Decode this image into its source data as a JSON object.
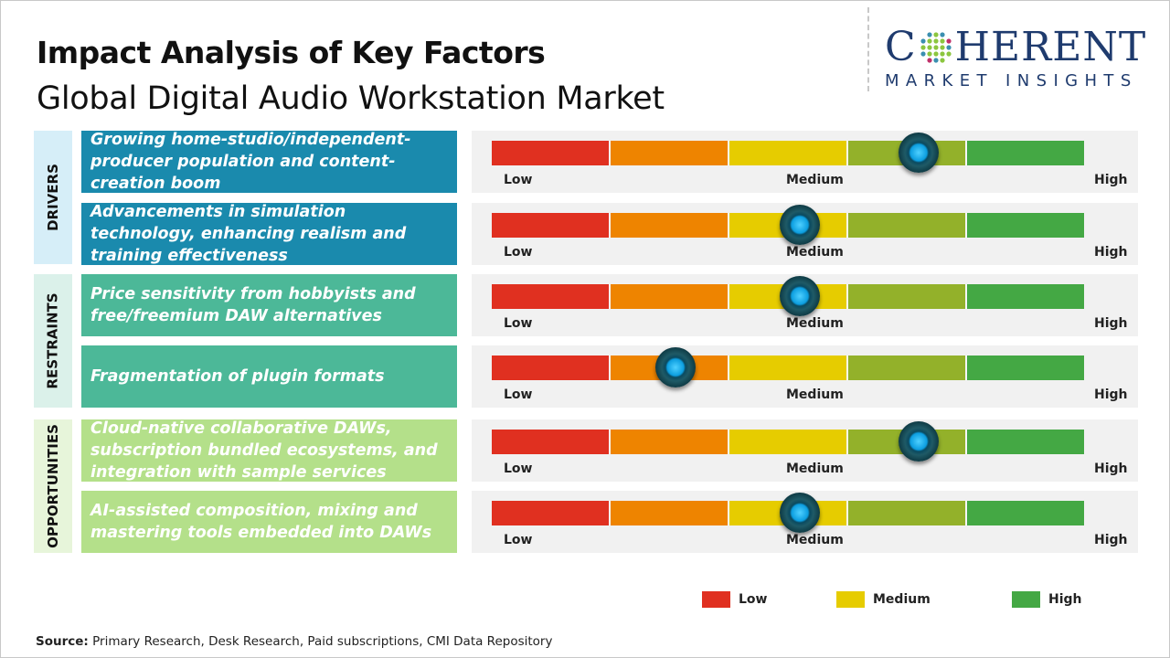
{
  "title": "Impact Analysis of Key Factors",
  "subtitle": "Global Digital Audio Workstation Market",
  "logo": {
    "main_left": "C",
    "main_right": "HERENT",
    "sub": "MARKET INSIGHTS"
  },
  "scale_labels": {
    "low": "Low",
    "medium": "Medium",
    "high": "High"
  },
  "segment_colors": [
    "#e03020",
    "#ee8400",
    "#e6cc00",
    "#93b12a",
    "#44a844"
  ],
  "groups": [
    {
      "label": "DRIVERS",
      "color": "#1a8aad",
      "side_color": "#d6eef8",
      "factors": [
        {
          "text": "Growing home-studio/independent-producer population and content-creation boom",
          "impact_percent": 72
        },
        {
          "text": "Advancements in simulation technology, enhancing realism and training effectiveness",
          "impact_percent": 52
        }
      ]
    },
    {
      "label": "RESTRAINTS",
      "color": "#4cb898",
      "side_color": "#dbf1ea",
      "factors": [
        {
          "text": "Price sensitivity from hobbyists and free/freemium DAW alternatives",
          "impact_percent": 52
        },
        {
          "text": "Fragmentation of plugin formats",
          "impact_percent": 31
        }
      ]
    },
    {
      "label": "OPPORTUNITIES",
      "color": "#b4e08a",
      "side_color": "#e7f5da",
      "factors": [
        {
          "text": "Cloud-native collaborative DAWs, subscription bundled ecosystems, and integration with sample services",
          "impact_percent": 72
        },
        {
          "text": "AI-assisted composition, mixing and mastering tools embedded into DAWs",
          "impact_percent": 52
        }
      ]
    }
  ],
  "legend": [
    {
      "label": "Low",
      "color": "#e03020"
    },
    {
      "label": "Medium",
      "color": "#e6cc00"
    },
    {
      "label": "High",
      "color": "#44a844"
    }
  ],
  "source": {
    "label": "Source:",
    "text": " Primary Research, Desk Research, Paid subscriptions, CMI Data Repository"
  }
}
